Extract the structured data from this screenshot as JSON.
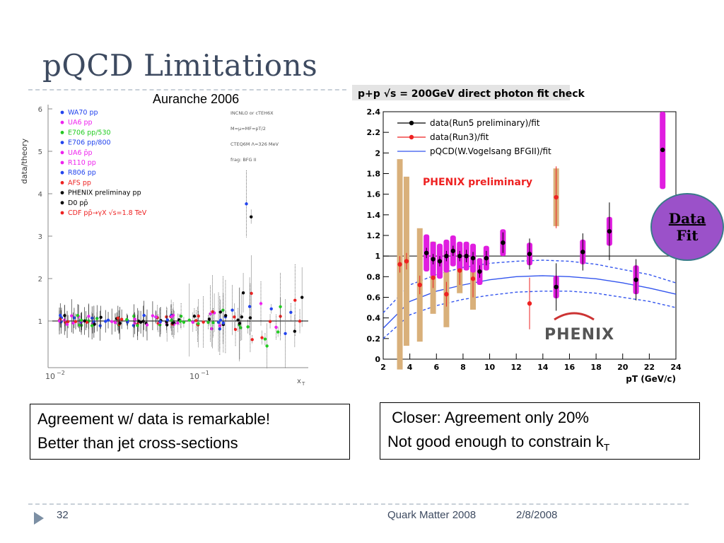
{
  "slide": {
    "title": "pQCD Limitations",
    "left_caption": "Auranche 2006",
    "left_box": [
      "Agreement w/ data is remarkable!",
      "Better than jet cross-sections"
    ],
    "right_box": [
      " Closer: Agreement only 20%",
      "Not good enough to constrain k",
      "T"
    ],
    "badge": [
      "Data",
      "Fit"
    ],
    "footer": {
      "page": "32",
      "event": "Quark Matter 2008",
      "date": "2/8/2008"
    }
  },
  "left_plot": {
    "ylabel": "data/theory",
    "xlabel": "x",
    "xsub": "T",
    "yticks": [
      "1",
      "2",
      "3",
      "4",
      "5",
      "6"
    ],
    "xticks": [
      "10",
      "10"
    ],
    "xexp": [
      "−2",
      "−1"
    ],
    "legend": [
      "WA70 pp",
      "UA6 pp",
      "E706 pp/530",
      "E706 pp/800",
      "UA6 p̄p",
      "R110 pp",
      "R806 pp",
      "AFS pp",
      "PHENIX preliminay pp",
      "D0 pp̄",
      "CDF pp̄→γX √s=1.8 TeV"
    ],
    "legend_colors": [
      "#2244ee",
      "#ee22ee",
      "#22cc22",
      "#2244ee",
      "#ee22ee",
      "#ee22ee",
      "#2244ee",
      "#ee2222",
      "#000000",
      "#000000",
      "#ee2222"
    ],
    "notes": [
      "INCNLO or cTEH6X",
      "M=µ=MF=pT/2",
      "CTEQ6M Λ=326 MeV",
      "frag: BFG II"
    ]
  },
  "chart_data": {
    "type": "scatter",
    "title": "p+p √s = 200GeV direct photon fit check",
    "xlabel": "pT (GeV/c)",
    "ylabel": "",
    "xlim": [
      2,
      24
    ],
    "ylim": [
      0,
      2.4
    ],
    "xticks": [
      2,
      4,
      6,
      8,
      10,
      12,
      14,
      16,
      18,
      20,
      22,
      24
    ],
    "yticks": [
      0,
      0.2,
      0.4,
      0.6,
      0.8,
      1,
      1.2,
      1.4,
      1.6,
      1.8,
      2,
      2.2,
      2.4
    ],
    "annotation": "PHENIX preliminary",
    "logo": "PHENIX",
    "series": [
      {
        "name": "data(Run5 preliminary)/fit",
        "color": "#000000",
        "x": [
          5.25,
          5.75,
          6.25,
          6.75,
          7.25,
          7.75,
          8.25,
          8.75,
          9.25,
          9.75,
          11,
          13,
          15,
          17,
          19,
          21,
          23
        ],
        "y": [
          1.03,
          0.97,
          0.95,
          1.0,
          1.05,
          1.0,
          1.0,
          0.98,
          0.85,
          0.98,
          1.13,
          1.02,
          0.7,
          1.04,
          1.24,
          0.77,
          2.03
        ],
        "sys": [
          0.18,
          0.17,
          0.17,
          0.16,
          0.15,
          0.14,
          0.14,
          0.14,
          0.13,
          0.12,
          0.13,
          0.11,
          0.11,
          0.12,
          0.14,
          0.14,
          0.38
        ],
        "stat": [
          0.05,
          0.05,
          0.05,
          0.05,
          0.05,
          0.05,
          0.06,
          0.06,
          0.06,
          0.07,
          0.1,
          0.15,
          0.23,
          0.18,
          0.28,
          0.2,
          0.0
        ]
      },
      {
        "name": "data(Run3)/fit",
        "color": "#ee2222",
        "x": [
          3.25,
          3.75,
          4.75,
          5.75,
          6.75,
          7.75,
          8.75,
          13,
          15
        ],
        "y": [
          0.92,
          0.95,
          0.72,
          0.79,
          0.63,
          0.86,
          0.78,
          0.54,
          1.57
        ],
        "sys": [
          1.02,
          0.82,
          0.55,
          0.35,
          0.32,
          0.22,
          0.3,
          0.0,
          0.28
        ],
        "stat": [
          0.08,
          0.08,
          0.09,
          0.1,
          0.12,
          0.14,
          0.18,
          0.25,
          0.3
        ]
      },
      {
        "name": "pQCD(W.Vogelsang BFGII)/fit",
        "color": "#3355ee",
        "x": [
          2,
          4,
          6,
          8,
          10,
          12,
          14,
          16,
          18,
          20,
          22,
          24
        ],
        "y": [
          0.3,
          0.56,
          0.66,
          0.72,
          0.77,
          0.8,
          0.81,
          0.8,
          0.78,
          0.74,
          0.69,
          0.63
        ],
        "band_hi": [
          0.45,
          0.72,
          0.82,
          0.89,
          0.93,
          0.95,
          0.96,
          0.95,
          0.92,
          0.87,
          0.82,
          0.74
        ],
        "band_lo": [
          0.2,
          0.43,
          0.52,
          0.58,
          0.62,
          0.65,
          0.66,
          0.66,
          0.64,
          0.6,
          0.56,
          0.5
        ]
      }
    ]
  }
}
